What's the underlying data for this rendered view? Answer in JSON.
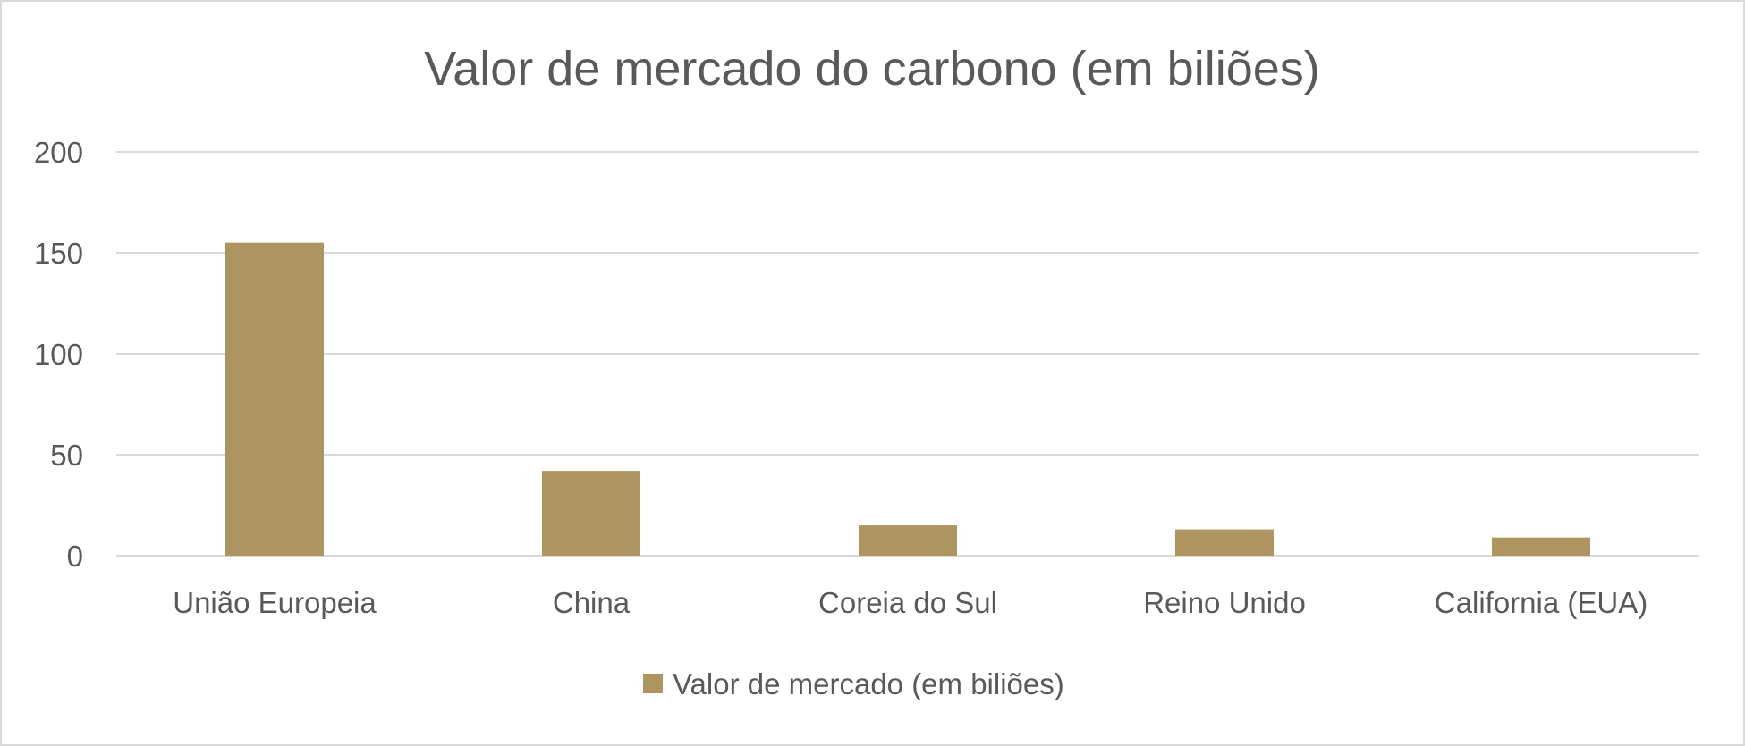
{
  "chart_data": {
    "type": "bar",
    "title": "Valor de mercado do carbono (em biliões)",
    "categories": [
      "União Europeia",
      "China",
      "Coreia do Sul",
      "Reino Unido",
      "California (EUA)"
    ],
    "series": [
      {
        "name": "Valor de mercado (em biliões)",
        "values": [
          155,
          42,
          15,
          13,
          9
        ]
      }
    ],
    "ylim": [
      0,
      200
    ],
    "yticks": [
      "0",
      "50",
      "100",
      "150",
      "200"
    ],
    "grid": true,
    "legend_position": "bottom",
    "colors": {
      "bar": "#AE9461",
      "grid": "#D9D9D9",
      "text": "#595959"
    }
  }
}
